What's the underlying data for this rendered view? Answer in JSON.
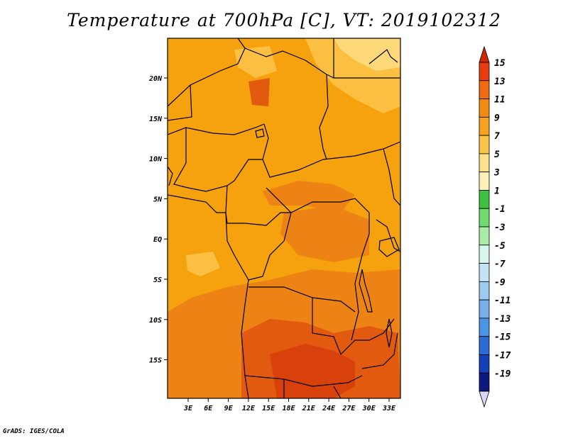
{
  "title": "Temperature at 700hPa [C], VT: 2019102312",
  "credit": "GrADS: IGES/COLA",
  "lat_labels": [
    "20N",
    "15N",
    "10N",
    "5N",
    "EQ",
    "5S",
    "10S",
    "15S"
  ],
  "lon_labels": [
    "3E",
    "6E",
    "9E",
    "12E",
    "15E",
    "18E",
    "21E",
    "24E",
    "27E",
    "30E",
    "33E"
  ],
  "colorbar": {
    "levels": [
      "15",
      "13",
      "11",
      "9",
      "7",
      "5",
      "3",
      "1",
      "-1",
      "-3",
      "-5",
      "-7",
      "-9",
      "-11",
      "-13",
      "-15",
      "-17",
      "-19"
    ],
    "colors": [
      "#e63c10",
      "#f06a10",
      "#f08a10",
      "#f6a420",
      "#fbc44a",
      "#fde08a",
      "#fff2b8",
      "#40c040",
      "#70dc70",
      "#a8eca8",
      "#d6f6ee",
      "#c4e4f6",
      "#9ccaf0",
      "#78b0ec",
      "#4c94e6",
      "#2c6ad8",
      "#1440b8",
      "#0c1a80"
    ],
    "top_arrow_color": "#d02800",
    "bottom_arrow_color": "#d8d8f6"
  },
  "map_colors": {
    "base": "#f6a10e",
    "warm": "#ec8314",
    "hot": "#e25a10",
    "hotter": "#d8400c",
    "cool": "#fbc041",
    "cooler": "#fdd97a"
  }
}
